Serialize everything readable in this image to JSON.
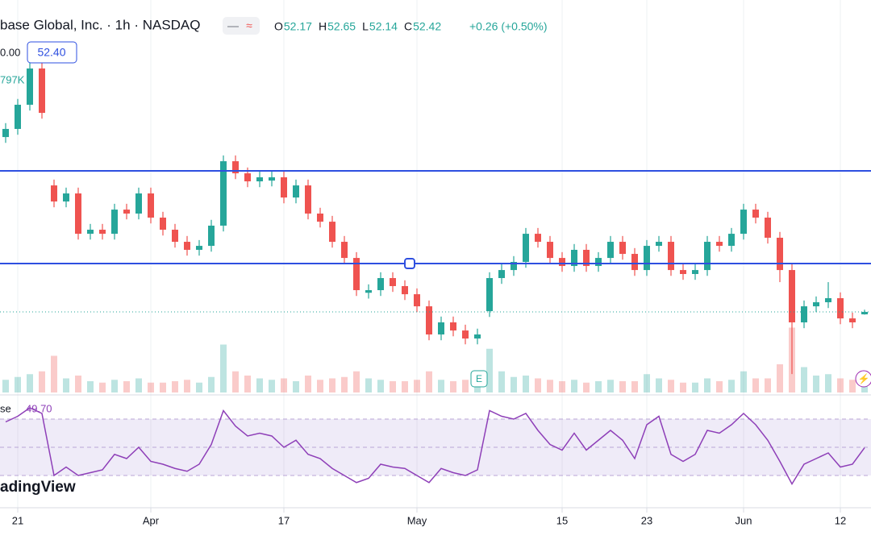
{
  "header": {
    "title": "base Global, Inc. · 1h · NASDAQ",
    "ohlc": [
      {
        "key": "O",
        "value": "52.17"
      },
      {
        "key": "H",
        "value": "52.65"
      },
      {
        "key": "L",
        "value": "52.14"
      },
      {
        "key": "C",
        "value": "52.42"
      }
    ],
    "change": "+0.26 (+0.50%)",
    "price_fragment": "0.00",
    "price_badge": "52.40",
    "volume_fragment": "797K"
  },
  "rsi_legend": {
    "name": "se",
    "value": "49.70"
  },
  "watermark": "adingView",
  "earnings_marker": "E",
  "chart_data": {
    "type": "candlestick",
    "categories": [
      null,
      "21",
      null,
      null,
      null,
      null,
      null,
      null,
      null,
      null,
      null,
      null,
      "Apr",
      null,
      null,
      null,
      null,
      null,
      null,
      null,
      null,
      null,
      null,
      "17",
      null,
      null,
      null,
      null,
      null,
      null,
      null,
      null,
      null,
      null,
      "May",
      null,
      null,
      null,
      null,
      null,
      null,
      null,
      null,
      null,
      null,
      null,
      "15",
      null,
      null,
      null,
      null,
      null,
      null,
      "23",
      null,
      null,
      null,
      null,
      null,
      null,
      null,
      "Jun",
      null,
      null,
      null,
      null,
      null,
      null,
      null,
      "12",
      null,
      null
    ],
    "open": [
      70.5,
      71.34,
      73.84,
      77.59,
      65.5,
      63.84,
      64.67,
      60.5,
      60.92,
      60.5,
      63.0,
      62.59,
      64.67,
      62.17,
      60.92,
      59.67,
      58.84,
      59.25,
      61.34,
      68.0,
      66.75,
      65.92,
      66.0,
      66.34,
      64.25,
      65.5,
      62.59,
      61.75,
      59.67,
      58.0,
      54.4,
      54.67,
      55.92,
      55.09,
      54.25,
      53.0,
      50.09,
      51.34,
      50.5,
      49.67,
      52.5,
      55.92,
      56.75,
      57.59,
      60.5,
      59.67,
      58.0,
      57.17,
      58.84,
      57.17,
      58.0,
      59.67,
      58.42,
      56.75,
      59.25,
      59.67,
      56.75,
      56.34,
      56.75,
      59.67,
      59.25,
      60.5,
      63.0,
      62.17,
      60.09,
      56.75,
      51.34,
      53.0,
      53.42,
      53.84,
      51.75,
      52.17
    ],
    "high": [
      71.94,
      74.44,
      79.0,
      78.19,
      66.1,
      65.27,
      65.27,
      61.52,
      61.52,
      63.6,
      63.6,
      65.27,
      65.27,
      62.77,
      61.52,
      60.27,
      59.85,
      61.94,
      68.6,
      68.6,
      67.35,
      66.94,
      66.94,
      66.94,
      66.1,
      66.1,
      63.19,
      62.35,
      60.27,
      58.6,
      55.27,
      56.52,
      56.52,
      55.69,
      54.85,
      53.6,
      51.94,
      51.94,
      51.1,
      50.69,
      56.52,
      57.35,
      58.19,
      61.1,
      61.1,
      60.27,
      58.6,
      59.44,
      59.44,
      58.6,
      60.27,
      60.27,
      59.02,
      59.85,
      60.27,
      60.27,
      57.35,
      57.35,
      60.27,
      60.27,
      61.1,
      63.6,
      63.6,
      62.77,
      60.69,
      57.35,
      53.6,
      54.02,
      55.5,
      54.44,
      52.35,
      52.65
    ],
    "low": [
      69.9,
      70.74,
      73.24,
      72.4,
      63.24,
      63.24,
      59.9,
      59.9,
      59.9,
      59.9,
      61.99,
      61.99,
      61.57,
      60.32,
      59.07,
      58.24,
      58.24,
      58.65,
      60.74,
      66.15,
      65.32,
      65.32,
      65.4,
      63.65,
      63.65,
      61.99,
      61.15,
      59.07,
      57.4,
      54.07,
      53.8,
      54.07,
      54.49,
      53.65,
      52.4,
      49.49,
      49.49,
      49.9,
      49.07,
      49.07,
      51.9,
      55.32,
      56.15,
      56.99,
      59.07,
      57.4,
      56.57,
      56.57,
      56.57,
      56.57,
      57.4,
      57.82,
      56.15,
      56.15,
      58.65,
      56.15,
      55.74,
      55.74,
      56.15,
      58.65,
      58.65,
      59.9,
      61.57,
      59.49,
      55.5,
      46.0,
      50.74,
      52.4,
      52.82,
      51.15,
      50.74,
      52.14
    ],
    "close": [
      71.34,
      73.84,
      77.59,
      73.0,
      63.84,
      64.67,
      60.5,
      60.92,
      60.5,
      63.0,
      62.59,
      64.67,
      62.17,
      60.92,
      59.67,
      58.84,
      59.25,
      61.34,
      68.0,
      66.75,
      65.92,
      66.34,
      66.34,
      64.25,
      65.5,
      62.59,
      61.75,
      59.67,
      58.0,
      54.67,
      54.67,
      55.92,
      55.09,
      54.25,
      53.0,
      50.09,
      51.34,
      50.5,
      49.67,
      50.09,
      55.92,
      56.75,
      57.59,
      60.5,
      59.67,
      58.0,
      57.17,
      58.84,
      57.17,
      58.0,
      59.67,
      58.42,
      56.75,
      59.25,
      59.67,
      56.75,
      56.34,
      56.75,
      59.67,
      59.25,
      60.5,
      63.0,
      62.17,
      60.09,
      56.75,
      51.34,
      53.0,
      53.42,
      53.84,
      51.75,
      51.34,
      52.42
    ],
    "volume": [
      900,
      1100,
      1300,
      1500,
      2600,
      1000,
      1200,
      800,
      700,
      900,
      800,
      1000,
      700,
      700,
      800,
      900,
      700,
      1100,
      3400,
      1500,
      1200,
      1000,
      900,
      1000,
      800,
      1200,
      900,
      1000,
      1100,
      1500,
      1000,
      900,
      800,
      800,
      900,
      1500,
      900,
      800,
      900,
      700,
      3100,
      1500,
      1100,
      1200,
      1000,
      900,
      800,
      900,
      700,
      800,
      900,
      800,
      800,
      1300,
      1000,
      900,
      700,
      700,
      1000,
      800,
      900,
      1500,
      1000,
      1000,
      2000,
      4600,
      1800,
      1200,
      1300,
      1000,
      900,
      797
    ],
    "rsi": [
      68,
      72,
      78,
      74,
      30,
      36,
      30,
      32,
      34,
      45,
      42,
      50,
      40,
      38,
      35,
      33,
      38,
      52,
      76,
      65,
      58,
      60,
      58,
      50,
      55,
      45,
      42,
      35,
      30,
      25,
      28,
      38,
      36,
      35,
      30,
      25,
      35,
      32,
      30,
      34,
      76,
      72,
      70,
      74,
      62,
      52,
      48,
      60,
      48,
      55,
      62,
      55,
      42,
      66,
      72,
      45,
      40,
      45,
      62,
      60,
      66,
      74,
      66,
      55,
      40,
      24,
      38,
      42,
      46,
      36,
      38,
      49.7
    ],
    "ylim": [
      43.84,
      84.67
    ],
    "vlim": [
      0,
      8000
    ],
    "rsi_ylim": [
      7.14,
      87.14
    ],
    "rsi_levels": [
      30,
      50,
      70
    ],
    "hlines": [
      67.0,
      57.42
    ],
    "up_color": "#26a69a",
    "down_color": "#ef5350",
    "line_color": "#2e4fe0",
    "rsi_color": "#8e3fb8"
  }
}
